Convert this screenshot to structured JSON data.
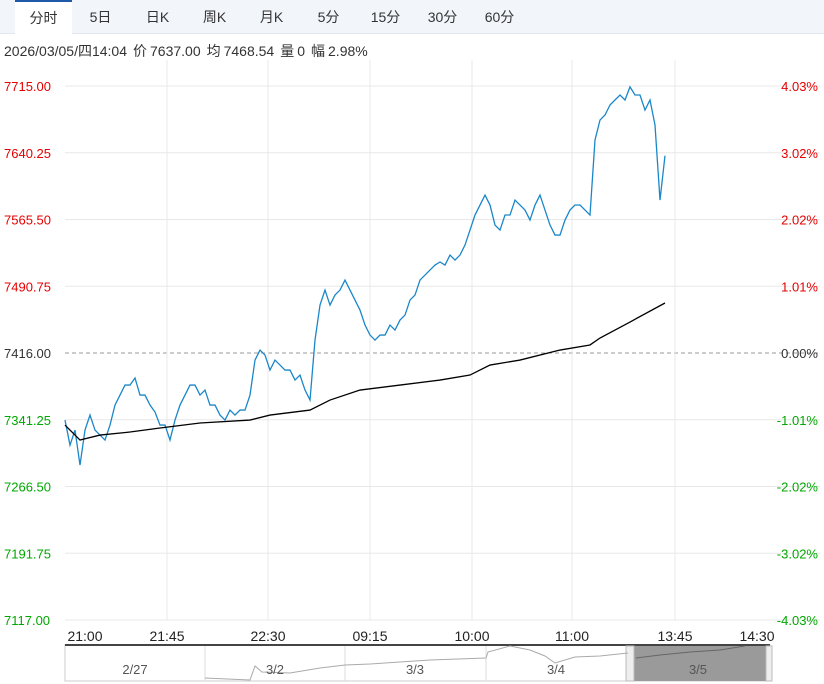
{
  "tabs": [
    "分时",
    "5日",
    "日K",
    "周K",
    "月K",
    "5分",
    "15分",
    "30分",
    "60分"
  ],
  "active_tab": 0,
  "info": {
    "datetime": "2026/03/05/四14:04",
    "price_label": "价",
    "price": "7637.00",
    "avg_label": "均",
    "avg": "7468.54",
    "vol_label": "量",
    "vol": "0",
    "amp_label": "幅",
    "amp": "2.98%"
  },
  "colors": {
    "up": "#e60000",
    "down": "#00a800",
    "price_line": "#1a87c9",
    "avg_line": "#000000"
  },
  "navigator": {
    "days": [
      "2/27",
      "3/2",
      "3/3",
      "3/4",
      "3/5"
    ],
    "selected": "3/5"
  },
  "chart_data": {
    "type": "line",
    "base": 7416.0,
    "ylim": [
      7117.0,
      7715.0
    ],
    "y_ticks": [
      "7715.00",
      "7640.25",
      "7565.50",
      "7490.75",
      "7416.00",
      "7341.25",
      "7266.50",
      "7191.75",
      "7117.00"
    ],
    "pct_ticks": [
      "4.03%",
      "3.02%",
      "2.02%",
      "1.01%",
      "0.00%",
      "-1.01%",
      "-2.02%",
      "-3.02%",
      "-4.03%"
    ],
    "x_ticks": [
      "21:00",
      "21:45",
      "22:30",
      "09:15",
      "10:00",
      "11:00",
      "13:45",
      "14:30"
    ],
    "x_slots": 141,
    "series": [
      {
        "name": "价",
        "values": [
          7340.9,
          7312.9,
          7329.7,
          7290.5,
          7329.7,
          7346.5,
          7329.7,
          7324.1,
          7318.5,
          7335.3,
          7357.7,
          7368.9,
          7380.1,
          7380.1,
          7388,
          7368.9,
          7368.9,
          7357.7,
          7349.9,
          7335.3,
          7335.3,
          7318.5,
          7340.9,
          7357.7,
          7368.9,
          7380.1,
          7380.1,
          7368.9,
          7374.5,
          7357.7,
          7357.7,
          7346.5,
          7340.9,
          7352.1,
          7346.5,
          7352.1,
          7352.1,
          7368.9,
          7408.1,
          7419.3,
          7413.7,
          7396.9,
          7408.1,
          7402.5,
          7396.9,
          7396.9,
          7385.7,
          7391.3,
          7374.5,
          7363.3,
          7430.5,
          7469.7,
          7486.5,
          7469.7,
          7480.9,
          7486.5,
          7497.7,
          7486.5,
          7475.3,
          7464.1,
          7447.3,
          7436.1,
          7430.5,
          7436.1,
          7436.1,
          7447.3,
          7441.7,
          7452.9,
          7458.5,
          7475.3,
          7480.9,
          7497.7,
          7503.3,
          7508.9,
          7514.5,
          7517.9,
          7514.5,
          7525.7,
          7520.1,
          7525.7,
          7536.9,
          7553.7,
          7570.5,
          7581.7,
          7592.9,
          7581.7,
          7559.3,
          7553.7,
          7570.5,
          7570.5,
          7587.3,
          7581.7,
          7576.1,
          7564.9,
          7581.7,
          7592.9,
          7576.1,
          7559.3,
          7548.1,
          7548.1,
          7564.9,
          7576.1,
          7581.7,
          7581.7,
          7576.1,
          7570.5,
          7654.5,
          7676.9,
          7682.5,
          7693.7,
          7699.3,
          7704.9,
          7699.3,
          7714,
          7704.9,
          7704.9,
          7688.1,
          7699.3,
          7671.3,
          7587.3,
          7637
        ]
      },
      {
        "name": "均",
        "points": [
          [
            0,
            7335.3
          ],
          [
            3,
            7318.5
          ],
          [
            7,
            7324.1
          ],
          [
            13,
            7327.5
          ],
          [
            19,
            7332
          ],
          [
            27,
            7337.6
          ],
          [
            37,
            7340.9
          ],
          [
            41,
            7346.5
          ],
          [
            49,
            7352.1
          ],
          [
            53,
            7363.3
          ],
          [
            59,
            7374.5
          ],
          [
            67,
            7380.1
          ],
          [
            75,
            7385.7
          ],
          [
            81,
            7391.3
          ],
          [
            85,
            7402.5
          ],
          [
            91,
            7408.1
          ],
          [
            99,
            7419.3
          ],
          [
            105,
            7425
          ],
          [
            107,
            7432.8
          ],
          [
            113,
            7450.7
          ],
          [
            120,
            7472
          ]
        ]
      }
    ]
  }
}
